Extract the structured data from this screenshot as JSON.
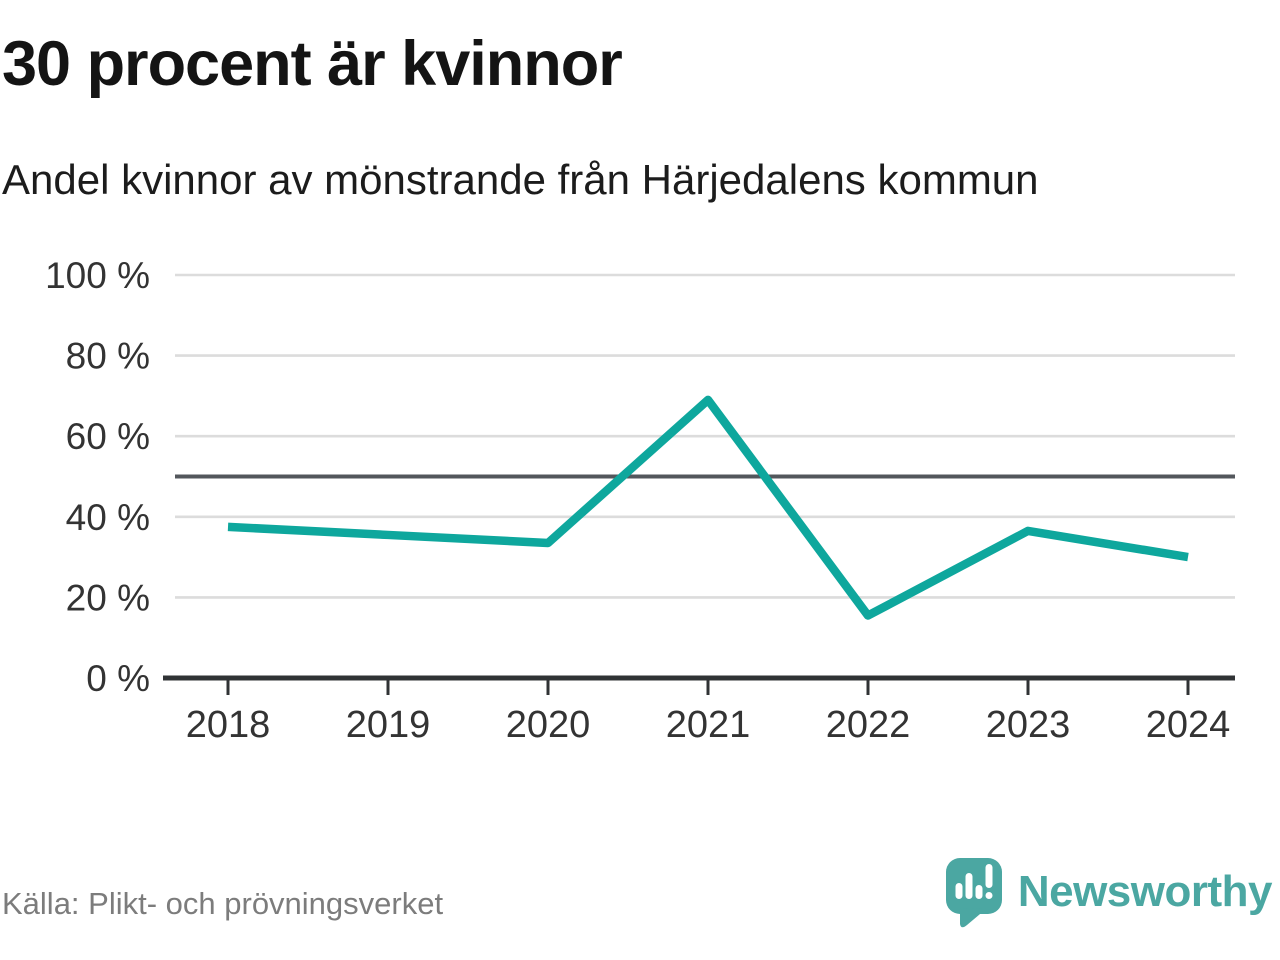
{
  "header": {
    "title": "30 procent är kvinnor",
    "subtitle": "Andel kvinnor av mönstrande från Härjedalens kommun"
  },
  "chart_data": {
    "type": "line",
    "title": "30 procent är kvinnor",
    "subtitle": "Andel kvinnor av mönstrande från Härjedalens kommun",
    "categories": [
      "2018",
      "2019",
      "2020",
      "2021",
      "2022",
      "2023",
      "2024"
    ],
    "values": [
      37.5,
      35.5,
      33.5,
      69,
      15.5,
      36.5,
      30
    ],
    "unit": "%",
    "ylim": [
      0,
      100
    ],
    "y_ticks": [
      {
        "value": 100,
        "label": "100 %"
      },
      {
        "value": 80,
        "label": "80 %"
      },
      {
        "value": 60,
        "label": "60 %"
      },
      {
        "value": 40,
        "label": "40 %"
      },
      {
        "value": 20,
        "label": "20 %"
      },
      {
        "value": 0,
        "label": "0 %"
      }
    ],
    "reference_line_value": 50,
    "grid": true,
    "legend": "none",
    "colors": {
      "line": "#0EA79D",
      "gridline": "#dcdcdc",
      "reference_line": "#53575c",
      "axis": "#303335",
      "tick_label": "#333333"
    }
  },
  "footer": {
    "source": "Källa: Plikt- och prövningsverket",
    "logo_text": "Newsworthy",
    "logo_color": "#4BA7A2"
  }
}
